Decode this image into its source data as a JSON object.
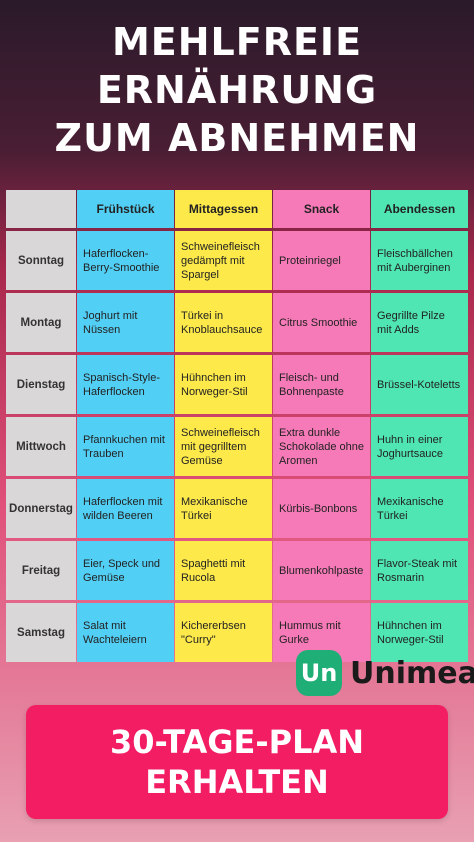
{
  "title": {
    "line1": "MEHLFREIE",
    "line2": "ERNÄHRUNG",
    "line3": "ZUM ABNEHMEN"
  },
  "colors": {
    "breakfast": "#52cff5",
    "lunch": "#fde94a",
    "snack": "#f77ab8",
    "dinner": "#4fe6b4",
    "cta": "#f21d63",
    "logo": "#1fae76"
  },
  "table": {
    "headers": [
      "Frühstück",
      "Mittagessen",
      "Snack",
      "Abendessen"
    ],
    "rows": [
      {
        "day": "Sonntag",
        "breakfast": "Haferflocken-Berry-Smoothie",
        "lunch": "Schweinefleisch gedämpft mit Spargel",
        "snack": "Proteinriegel",
        "dinner": "Fleischbällchen mit Auberginen"
      },
      {
        "day": "Montag",
        "breakfast": "Joghurt mit Nüssen",
        "lunch": "Türkei in Knoblauchsauce",
        "snack": "Citrus Smoothie",
        "dinner": "Gegrillte Pilze mit Adds"
      },
      {
        "day": "Dienstag",
        "breakfast": "Spanisch-Style-Haferflocken",
        "lunch": "Hühnchen im Norweger-Stil",
        "snack": "Fleisch- und Bohnenpaste",
        "dinner": "Brüssel-Koteletts"
      },
      {
        "day": "Mittwoch",
        "breakfast": "Pfannkuchen mit Trauben",
        "lunch": "Schweinefleisch mit gegrilltem Gemüse",
        "snack": "Extra dunkle Schokolade ohne Aromen",
        "dinner": "Huhn in einer Joghurtsauce"
      },
      {
        "day": "Donnerstag",
        "breakfast": "Haferflocken mit wilden Beeren",
        "lunch": "Mexikanische Türkei",
        "snack": "Kürbis-Bonbons",
        "dinner": "Mexikanische Türkei"
      },
      {
        "day": "Freitag",
        "breakfast": "Eier, Speck und Gemüse",
        "lunch": "Spaghetti mit Rucola",
        "snack": "Blumenkohlpaste",
        "dinner": "Flavor-Steak mit Rosmarin"
      },
      {
        "day": "Samstag",
        "breakfast": "Salat mit Wachteleiern",
        "lunch": "Kichererbsen \"Curry\"",
        "snack": "Hummus mit Gurke",
        "dinner": "Hühnchen im Norweger-Stil"
      }
    ]
  },
  "logo": {
    "mark": "Un",
    "name": "Unimeal"
  },
  "cta": {
    "line1": "30-TAGE-PLAN",
    "line2": "ERHALTEN"
  }
}
